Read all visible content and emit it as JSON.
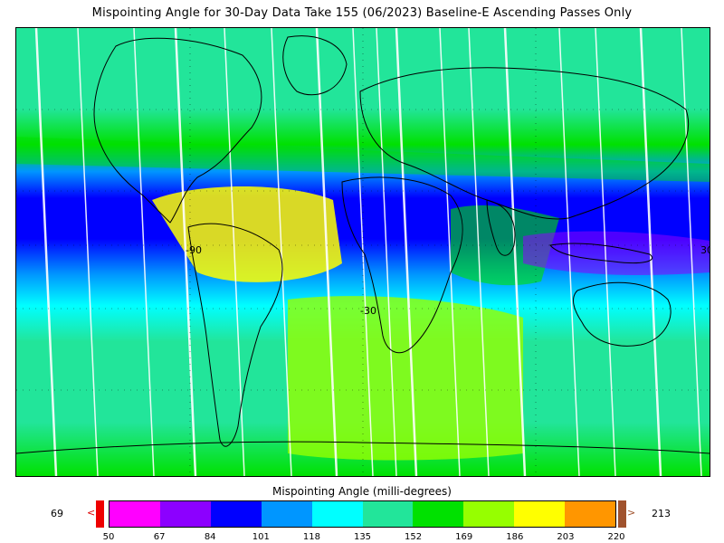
{
  "title": "Mispointing Angle for 30-Day Data Take 155 (06/2023) Baseline-E Ascending Passes Only",
  "map": {
    "longitude_labels": [
      "-90",
      "-30"
    ],
    "latitude_labels": [
      "-30"
    ],
    "right_edge_label": "30",
    "land_outline_color": "#000000",
    "swath_gap_color": "#ffffff"
  },
  "colorbar": {
    "title": "Mispointing Angle (milli-degrees)",
    "min_label": "69",
    "max_label": "213",
    "under_arrow": "<",
    "over_arrow": ">",
    "under_color": "#ee0000",
    "over_color": "#a0522d",
    "tick_labels": [
      "50",
      "67",
      "84",
      "101",
      "118",
      "135",
      "152",
      "169",
      "186",
      "203",
      "220"
    ],
    "colors": [
      "#ff00ff",
      "#8c00ff",
      "#0000ff",
      "#0096ff",
      "#00ffff",
      "#22e59a",
      "#00e100",
      "#96ff00",
      "#ffff00",
      "#ff9600"
    ]
  }
}
